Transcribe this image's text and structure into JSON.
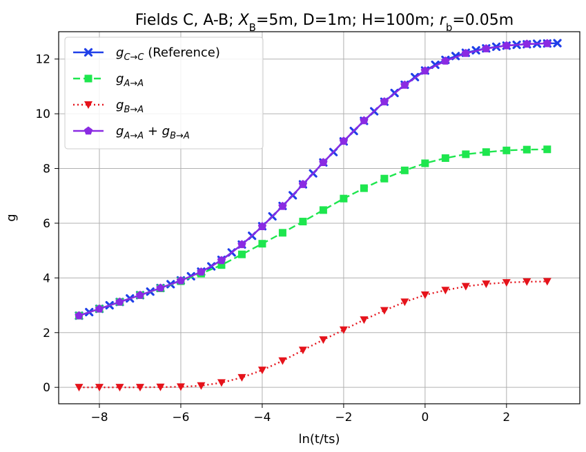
{
  "chart_data": {
    "type": "line",
    "title_parts": [
      {
        "t": "Fields C, A-B; ",
        "style": "normal"
      },
      {
        "t": "X",
        "style": "italic"
      },
      {
        "t": "B",
        "style": "sub"
      },
      {
        "t": "=5m, D=1m; H=100m; ",
        "style": "normal"
      },
      {
        "t": "r",
        "style": "italic"
      },
      {
        "t": "b",
        "style": "sub"
      },
      {
        "t": "=0.05m",
        "style": "normal"
      }
    ],
    "xlabel": "ln(t/ts)",
    "ylabel": "g",
    "xlim": [
      -9.0,
      3.8
    ],
    "ylim": [
      -0.6,
      13.0
    ],
    "xticks": [
      -8,
      -6,
      -4,
      -2,
      0,
      2
    ],
    "xtick_labels": [
      "−8",
      "−6",
      "−4",
      "−2",
      "0",
      "2"
    ],
    "yticks": [
      0,
      2,
      4,
      6,
      8,
      10,
      12
    ],
    "ytick_labels": [
      "0",
      "2",
      "4",
      "6",
      "8",
      "10",
      "12"
    ],
    "grid": true,
    "legend_position": "top-left",
    "series": [
      {
        "id": "gcc",
        "legend_main": "g",
        "legend_sub": "C→C",
        "legend_suffix": " (Reference)",
        "color": "#1f3fe8",
        "linestyle": "solid",
        "marker": "x",
        "x": [
          -8.5,
          -8.25,
          -8.0,
          -7.75,
          -7.5,
          -7.25,
          -7.0,
          -6.75,
          -6.5,
          -6.25,
          -6.0,
          -5.75,
          -5.5,
          -5.25,
          -5.0,
          -4.75,
          -4.5,
          -4.25,
          -4.0,
          -3.75,
          -3.5,
          -3.25,
          -3.0,
          -2.75,
          -2.5,
          -2.25,
          -2.0,
          -1.75,
          -1.5,
          -1.25,
          -1.0,
          -0.75,
          -0.5,
          -0.25,
          0.0,
          0.25,
          0.5,
          0.75,
          1.0,
          1.25,
          1.5,
          1.75,
          2.0,
          2.25,
          2.5,
          2.75,
          3.0,
          3.25
        ],
        "y": [
          2.62,
          2.75,
          2.87,
          3.0,
          3.12,
          3.25,
          3.37,
          3.5,
          3.63,
          3.77,
          3.91,
          4.06,
          4.23,
          4.42,
          4.66,
          4.93,
          5.22,
          5.54,
          5.89,
          6.25,
          6.63,
          7.02,
          7.42,
          7.82,
          8.22,
          8.6,
          8.99,
          9.37,
          9.74,
          10.09,
          10.44,
          10.76,
          11.06,
          11.34,
          11.58,
          11.79,
          11.97,
          12.11,
          12.23,
          12.32,
          12.39,
          12.45,
          12.49,
          12.52,
          12.54,
          12.56,
          12.57,
          12.58
        ]
      },
      {
        "id": "gaa",
        "legend_main": "g",
        "legend_sub": "A→A",
        "legend_suffix": "",
        "color": "#1ee64e",
        "linestyle": "dashed",
        "marker": "s",
        "x": [
          -8.5,
          -8.0,
          -7.5,
          -7.0,
          -6.5,
          -6.0,
          -5.5,
          -5.0,
          -4.5,
          -4.0,
          -3.5,
          -3.0,
          -2.5,
          -2.0,
          -1.5,
          -1.0,
          -0.5,
          0.0,
          0.5,
          1.0,
          1.5,
          2.0,
          2.5,
          3.0
        ],
        "y": [
          2.62,
          2.87,
          3.12,
          3.37,
          3.62,
          3.88,
          4.16,
          4.47,
          4.86,
          5.25,
          5.65,
          6.06,
          6.48,
          6.9,
          7.28,
          7.63,
          7.93,
          8.19,
          8.38,
          8.52,
          8.6,
          8.66,
          8.69,
          8.7
        ]
      },
      {
        "id": "gba",
        "legend_main": "g",
        "legend_sub": "B→A",
        "legend_suffix": "",
        "color": "#e5131b",
        "linestyle": "dotted",
        "marker": "v",
        "x": [
          -8.5,
          -8.0,
          -7.5,
          -7.0,
          -6.5,
          -6.0,
          -5.5,
          -5.0,
          -4.5,
          -4.0,
          -3.5,
          -3.0,
          -2.5,
          -2.0,
          -1.5,
          -1.0,
          -0.5,
          0.0,
          0.5,
          1.0,
          1.5,
          2.0,
          2.5,
          3.0
        ],
        "y": [
          0.0,
          0.0,
          0.0,
          0.0,
          0.01,
          0.02,
          0.06,
          0.17,
          0.36,
          0.63,
          0.97,
          1.36,
          1.74,
          2.1,
          2.47,
          2.81,
          3.12,
          3.38,
          3.55,
          3.69,
          3.78,
          3.83,
          3.86,
          3.87
        ]
      },
      {
        "id": "gsum",
        "legend_main": "g",
        "legend_sub": "A→A",
        "legend_suffix": "",
        "legend_main2": "g",
        "legend_sub2": "B→A",
        "color": "#8a2be2",
        "linestyle": "solid",
        "marker": "p",
        "x": [
          -8.5,
          -8.0,
          -7.5,
          -7.0,
          -6.5,
          -6.0,
          -5.5,
          -5.0,
          -4.5,
          -4.0,
          -3.5,
          -3.0,
          -2.5,
          -2.0,
          -1.5,
          -1.0,
          -0.5,
          0.0,
          0.5,
          1.0,
          1.5,
          2.0,
          2.5,
          3.0
        ],
        "y": [
          2.62,
          2.87,
          3.12,
          3.37,
          3.63,
          3.9,
          4.22,
          4.64,
          5.22,
          5.88,
          6.62,
          7.42,
          8.22,
          9.0,
          9.75,
          10.44,
          11.05,
          11.57,
          11.93,
          12.21,
          12.38,
          12.49,
          12.55,
          12.57
        ]
      }
    ]
  }
}
